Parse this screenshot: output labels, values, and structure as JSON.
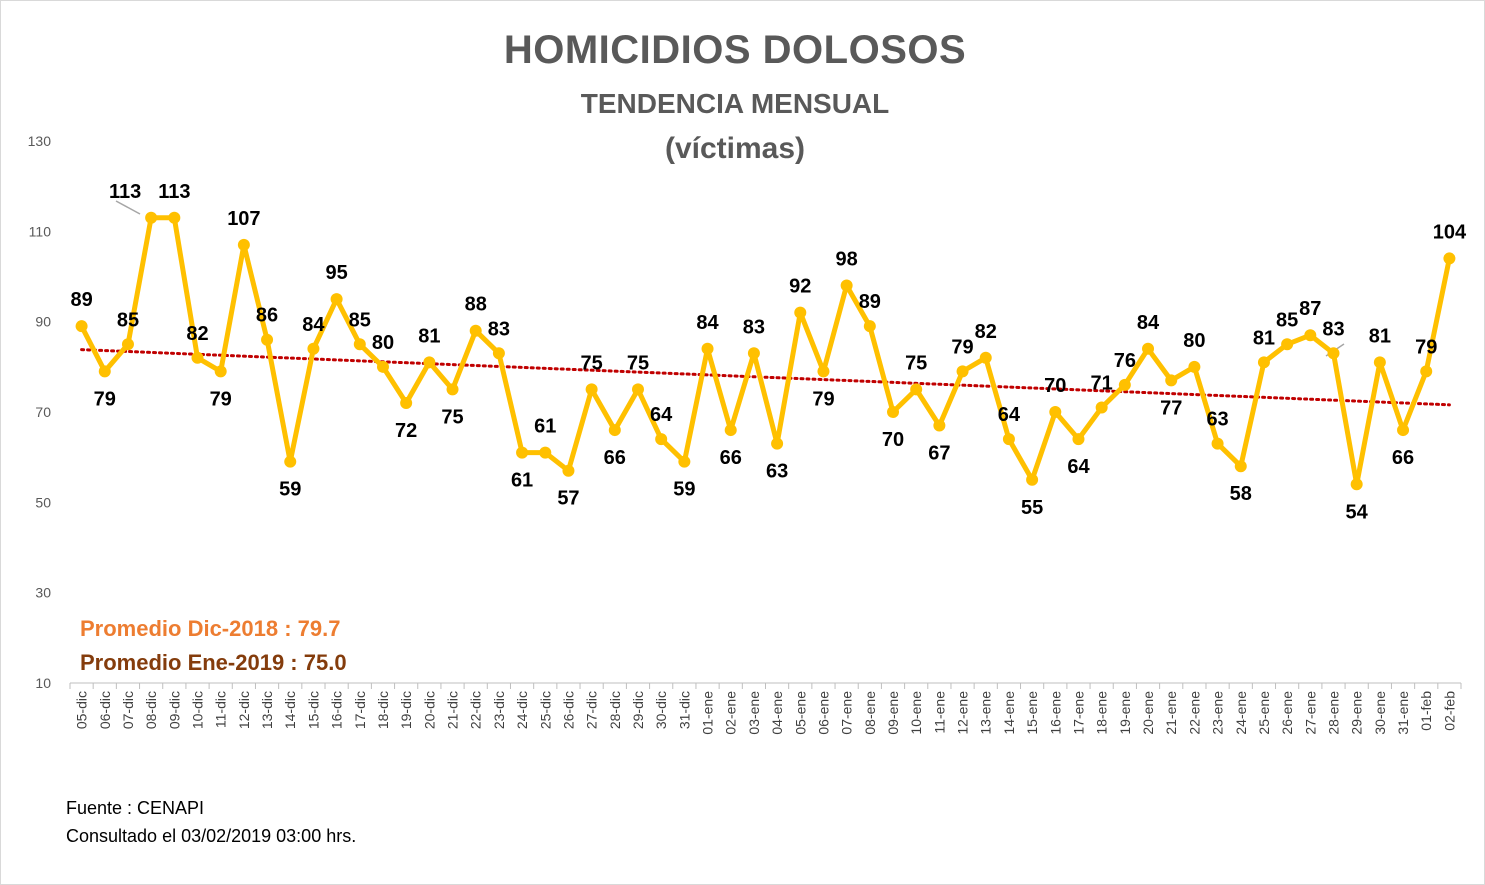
{
  "header": {
    "title": "HOMICIDIOS DOLOSOS",
    "subtitle": "TENDENCIA MENSUAL",
    "unit": "(víctimas)"
  },
  "notes": {
    "avg_dec": "Promedio Dic-2018  : 79.7",
    "avg_jan": "Promedio Ene-2019 : 75.0"
  },
  "footer": {
    "source": "Fuente : CENAPI",
    "consulted": "Consultado el 03/02/2019  03:00 hrs."
  },
  "colors": {
    "series": "#ffc000",
    "trend": "#c00000",
    "avg_dec": "#ed7d31",
    "avg_jan": "#843c0c"
  },
  "chart_data": {
    "type": "line",
    "title": "HOMICIDIOS DOLOSOS",
    "subtitle": "TENDENCIA MENSUAL",
    "ylabel": "(víctimas)",
    "xlabel": "",
    "ylim": [
      10,
      130
    ],
    "yticks": [
      10,
      30,
      50,
      70,
      90,
      110,
      130
    ],
    "grid": false,
    "legend": "none",
    "categories": [
      "05-dic",
      "06-dic",
      "07-dic",
      "08-dic",
      "09-dic",
      "10-dic",
      "11-dic",
      "12-dic",
      "13-dic",
      "14-dic",
      "15-dic",
      "16-dic",
      "17-dic",
      "18-dic",
      "19-dic",
      "20-dic",
      "21-dic",
      "22-dic",
      "23-dic",
      "24-dic",
      "25-dic",
      "26-dic",
      "27-dic",
      "28-dic",
      "29-dic",
      "30-dic",
      "31-dic",
      "01-ene",
      "02-ene",
      "03-ene",
      "04-ene",
      "05-ene",
      "06-ene",
      "07-ene",
      "08-ene",
      "09-ene",
      "10-ene",
      "11-ene",
      "12-ene",
      "13-ene",
      "14-ene",
      "15-ene",
      "16-ene",
      "17-ene",
      "18-ene",
      "19-ene",
      "20-ene",
      "21-ene",
      "22-ene",
      "23-ene",
      "24-ene",
      "25-ene",
      "26-ene",
      "27-ene",
      "28-ene",
      "29-ene",
      "30-ene",
      "31-ene",
      "01-feb",
      "02-feb"
    ],
    "series": [
      {
        "values": [
          89,
          79,
          85,
          113,
          113,
          82,
          79,
          107,
          86,
          59,
          84,
          95,
          85,
          80,
          72,
          81,
          75,
          88,
          83,
          61,
          61,
          57,
          75,
          66,
          75,
          64,
          59,
          84,
          66,
          83,
          63,
          92,
          79,
          98,
          89,
          70,
          75,
          67,
          79,
          82,
          64,
          55,
          70,
          64,
          71,
          76,
          84,
          77,
          80,
          63,
          58,
          81,
          85,
          87,
          83,
          54,
          81,
          66,
          79,
          104
        ]
      }
    ],
    "trendline": {
      "type": "linear",
      "style": "dotted"
    }
  }
}
